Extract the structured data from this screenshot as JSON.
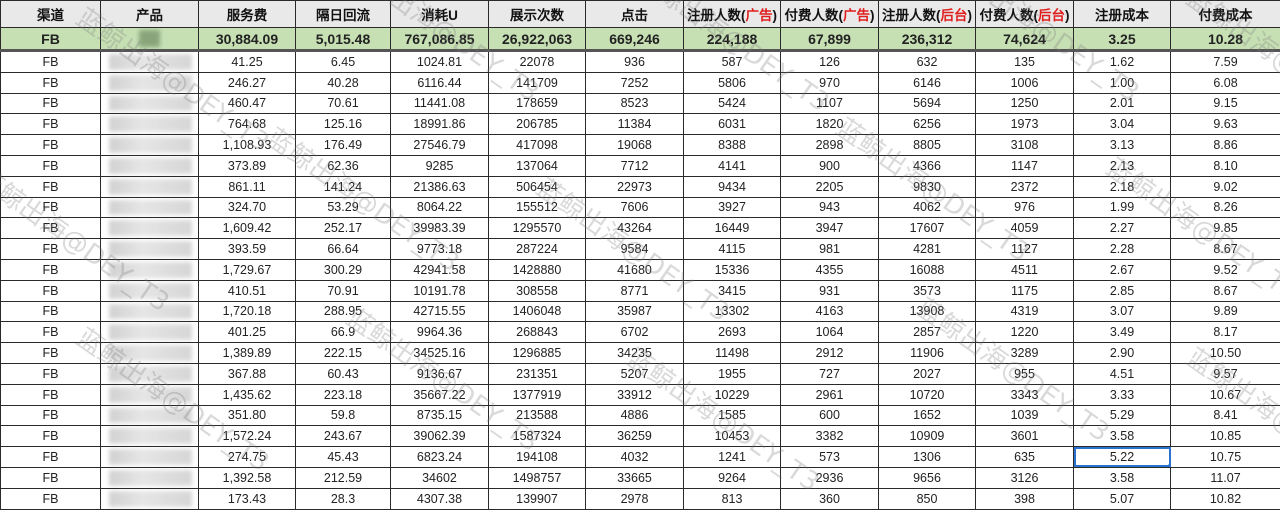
{
  "columns": [
    {
      "label": "渠道"
    },
    {
      "label": "产品"
    },
    {
      "label": "服务费"
    },
    {
      "label": "隔日回流"
    },
    {
      "label": "消耗U"
    },
    {
      "label": "展示次数"
    },
    {
      "label": "点击"
    },
    {
      "label": "注册人数(",
      "red": "广告",
      "suffix": ")"
    },
    {
      "label": "付费人数(",
      "red": "广告",
      "suffix": ")"
    },
    {
      "label": "注册人数(",
      "red": "后台",
      "suffix": ")"
    },
    {
      "label": "付费人数(",
      "red": "后台",
      "suffix": ")"
    },
    {
      "label": "注册成本"
    },
    {
      "label": "付费成本"
    }
  ],
  "summary": [
    "FB",
    "",
    "30,884.09",
    "5,015.48",
    "767,086.85",
    "26,922,063",
    "669,246",
    "224,188",
    "67,899",
    "236,312",
    "74,624",
    "3.25",
    "10.28"
  ],
  "rows": [
    [
      "FB",
      "",
      "41.25",
      "6.45",
      "1024.81",
      "22078",
      "936",
      "587",
      "126",
      "632",
      "135",
      "1.62",
      "7.59"
    ],
    [
      "FB",
      "",
      "246.27",
      "40.28",
      "6116.44",
      "141709",
      "7252",
      "5806",
      "970",
      "6146",
      "1006",
      "1.00",
      "6.08"
    ],
    [
      "FB",
      "",
      "460.47",
      "70.61",
      "11441.08",
      "178659",
      "8523",
      "5424",
      "1107",
      "5694",
      "1250",
      "2.01",
      "9.15"
    ],
    [
      "FB",
      "",
      "764.68",
      "125.16",
      "18991.86",
      "206785",
      "11384",
      "6031",
      "1820",
      "6256",
      "1973",
      "3.04",
      "9.63"
    ],
    [
      "FB",
      "",
      "1,108.93",
      "176.49",
      "27546.79",
      "417098",
      "19068",
      "8388",
      "2898",
      "8805",
      "3108",
      "3.13",
      "8.86"
    ],
    [
      "FB",
      "",
      "373.89",
      "62.36",
      "9285",
      "137064",
      "7712",
      "4141",
      "900",
      "4366",
      "1147",
      "2.13",
      "8.10"
    ],
    [
      "FB",
      "",
      "861.11",
      "141.24",
      "21386.63",
      "506454",
      "22973",
      "9434",
      "2205",
      "9830",
      "2372",
      "2.18",
      "9.02"
    ],
    [
      "FB",
      "",
      "324.70",
      "53.29",
      "8064.22",
      "155512",
      "7606",
      "3927",
      "943",
      "4062",
      "976",
      "1.99",
      "8.26"
    ],
    [
      "FB",
      "",
      "1,609.42",
      "252.17",
      "39983.39",
      "1295570",
      "43264",
      "16449",
      "3947",
      "17607",
      "4059",
      "2.27",
      "9.85"
    ],
    [
      "FB",
      "",
      "393.59",
      "66.64",
      "9773.18",
      "287224",
      "9584",
      "4115",
      "981",
      "4281",
      "1127",
      "2.28",
      "8.67"
    ],
    [
      "FB",
      "",
      "1,729.67",
      "300.29",
      "42941.58",
      "1428880",
      "41680",
      "15336",
      "4355",
      "16088",
      "4511",
      "2.67",
      "9.52"
    ],
    [
      "FB",
      "",
      "410.51",
      "70.91",
      "10191.78",
      "308558",
      "8771",
      "3415",
      "931",
      "3573",
      "1175",
      "2.85",
      "8.67"
    ],
    [
      "FB",
      "",
      "1,720.18",
      "288.95",
      "42715.55",
      "1406048",
      "35987",
      "13302",
      "4163",
      "13908",
      "4319",
      "3.07",
      "9.89"
    ],
    [
      "FB",
      "",
      "401.25",
      "66.9",
      "9964.36",
      "268843",
      "6702",
      "2693",
      "1064",
      "2857",
      "1220",
      "3.49",
      "8.17"
    ],
    [
      "FB",
      "",
      "1,389.89",
      "222.15",
      "34525.16",
      "1296885",
      "34235",
      "11498",
      "2912",
      "11906",
      "3289",
      "2.90",
      "10.50"
    ],
    [
      "FB",
      "",
      "367.88",
      "60.43",
      "9136.67",
      "231351",
      "5207",
      "1955",
      "727",
      "2027",
      "955",
      "4.51",
      "9.57"
    ],
    [
      "FB",
      "",
      "1,435.62",
      "223.18",
      "35667.22",
      "1377919",
      "33912",
      "10229",
      "2961",
      "10720",
      "3343",
      "3.33",
      "10.67"
    ],
    [
      "FB",
      "",
      "351.80",
      "59.8",
      "8735.15",
      "213588",
      "4886",
      "1585",
      "600",
      "1652",
      "1039",
      "5.29",
      "8.41"
    ],
    [
      "FB",
      "",
      "1,572.24",
      "243.67",
      "39062.39",
      "1587324",
      "36259",
      "10453",
      "3382",
      "10909",
      "3601",
      "3.58",
      "10.85"
    ],
    [
      "FB",
      "",
      "274.75",
      "45.43",
      "6823.24",
      "194108",
      "4032",
      "1241",
      "573",
      "1306",
      "635",
      "5.22",
      "10.75"
    ],
    [
      "FB",
      "",
      "1,392.58",
      "212.59",
      "34602",
      "1498757",
      "33665",
      "9264",
      "2936",
      "9656",
      "3126",
      "3.58",
      "11.07"
    ],
    [
      "FB",
      "",
      "173.43",
      "28.3",
      "4307.38",
      "139907",
      "2978",
      "813",
      "360",
      "850",
      "398",
      "5.07",
      "10.82"
    ]
  ],
  "selected_cell": {
    "row": 19,
    "col": 11
  },
  "watermark": "蓝鲸出海@DEY_T3",
  "colors": {
    "header_bg": "#e9e9e9",
    "summary_bg": "#c6e0b4",
    "header_highlight": "#e01e1e",
    "selection": "#2a72d0"
  }
}
